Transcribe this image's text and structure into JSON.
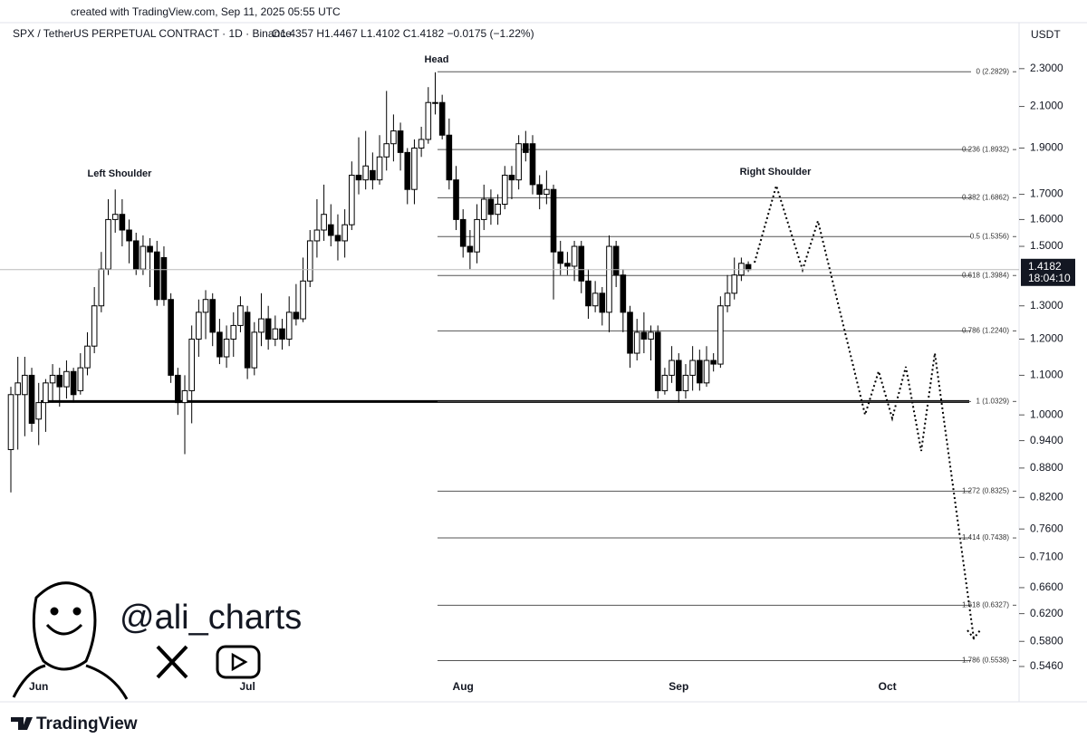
{
  "header": {
    "credit": "created with TradingView.com, Sep 11, 2025 05:55 UTC",
    "symbol": "SPX / TetherUS PERPETUAL CONTRACT · 1D · Binance",
    "ohlc": "O1.4357  H1.4467  L1.4102  C1.4182  −0.0175 (−1.22%)",
    "currency": "USDT"
  },
  "chart_data": {
    "type": "candlestick",
    "log_scale": true,
    "grid": false,
    "up_color": "#ffffff",
    "down_color": "#000000",
    "outline_color": "#000000",
    "categories": [
      null,
      null,
      null,
      null,
      "Jun",
      null,
      null,
      null,
      null,
      null,
      null,
      null,
      null,
      null,
      null,
      null,
      null,
      null,
      null,
      null,
      null,
      null,
      null,
      null,
      null,
      null,
      null,
      null,
      null,
      null,
      null,
      null,
      null,
      null,
      "Jul",
      null,
      null,
      null,
      null,
      null,
      null,
      null,
      null,
      null,
      null,
      null,
      null,
      null,
      null,
      null,
      null,
      null,
      null,
      null,
      null,
      null,
      null,
      null,
      null,
      null,
      null,
      null,
      null,
      null,
      null,
      "Aug",
      null,
      null,
      null,
      null,
      null,
      null,
      null,
      null,
      null,
      null,
      null,
      null,
      null,
      null,
      null,
      null,
      null,
      null,
      null,
      null,
      null,
      null,
      null,
      null,
      null,
      null,
      null,
      null,
      null,
      null,
      "Sep",
      null,
      null,
      null,
      null,
      null,
      null,
      null,
      null,
      null,
      null,
      null,
      null,
      null,
      null,
      null,
      null,
      null,
      null,
      null,
      null,
      null,
      null,
      null,
      null,
      null,
      null,
      null,
      null,
      null,
      "Oct"
    ],
    "open": [
      0.92,
      1.05,
      1.05,
      1.1,
      0.99,
      1.03,
      1.08,
      1.1,
      1.07,
      1.11,
      1.06,
      1.12,
      1.18,
      1.3,
      1.42,
      1.6,
      1.62,
      1.56,
      1.52,
      1.42,
      1.5,
      1.48,
      1.46,
      1.32,
      1.1,
      1.03,
      1.06,
      1.2,
      1.28,
      1.32,
      1.22,
      1.15,
      1.2,
      1.24,
      1.28,
      1.12,
      1.22,
      1.26,
      1.2,
      1.23,
      1.2,
      1.28,
      1.26,
      1.38,
      1.52,
      1.56,
      1.58,
      1.54,
      1.52,
      1.58,
      1.78,
      1.76,
      1.8,
      1.76,
      1.86,
      1.92,
      1.98,
      1.88,
      1.72,
      1.9,
      1.94,
      2.12,
      2.12,
      1.96,
      1.76,
      1.6,
      1.5,
      1.48,
      1.6,
      1.68,
      1.62,
      1.66,
      1.78,
      1.76,
      1.92,
      1.92,
      1.74,
      1.7,
      1.72,
      1.48,
      1.44,
      1.43,
      1.5,
      1.38,
      1.3,
      1.34,
      1.28,
      1.5,
      1.4,
      1.28,
      1.16,
      1.22,
      1.2,
      1.22,
      1.06,
      1.1,
      1.14,
      1.06,
      1.1,
      1.14,
      1.08,
      1.14,
      1.13,
      1.3,
      1.34,
      1.4,
      1.4357,
      null,
      null,
      null,
      null,
      null,
      null,
      null,
      null,
      null,
      null,
      null,
      null,
      null,
      null,
      null,
      null,
      null,
      null,
      null,
      null
    ],
    "high": [
      1.07,
      1.15,
      1.15,
      1.12,
      1.08,
      1.09,
      1.13,
      1.12,
      1.14,
      1.12,
      1.16,
      1.22,
      1.36,
      1.48,
      1.68,
      1.72,
      1.68,
      1.6,
      1.55,
      1.54,
      1.53,
      1.52,
      1.5,
      1.34,
      1.12,
      1.1,
      1.24,
      1.32,
      1.35,
      1.34,
      1.26,
      1.24,
      1.28,
      1.33,
      1.3,
      1.25,
      1.34,
      1.3,
      1.27,
      1.26,
      1.33,
      1.37,
      1.46,
      1.56,
      1.68,
      1.74,
      1.66,
      1.62,
      1.64,
      1.84,
      1.95,
      1.98,
      1.88,
      1.96,
      2.18,
      2.06,
      2.02,
      1.9,
      1.94,
      2.0,
      2.2,
      2.28,
      2.16,
      2.04,
      1.82,
      1.64,
      1.56,
      1.66,
      1.74,
      1.72,
      1.7,
      1.82,
      1.82,
      1.96,
      1.98,
      1.96,
      1.78,
      1.8,
      1.74,
      1.52,
      1.48,
      1.52,
      1.52,
      1.42,
      1.38,
      1.36,
      1.54,
      1.52,
      1.42,
      1.3,
      1.26,
      1.28,
      1.24,
      1.24,
      1.12,
      1.18,
      1.16,
      1.13,
      1.18,
      1.17,
      1.18,
      1.16,
      1.33,
      1.4,
      1.46,
      1.46,
      1.4467,
      null,
      null,
      null,
      null,
      null,
      null,
      null,
      null,
      null,
      null,
      null,
      null,
      null,
      null,
      null,
      null,
      null,
      null,
      null,
      null
    ],
    "low": [
      0.83,
      0.92,
      0.95,
      0.96,
      0.93,
      0.96,
      1.03,
      1.02,
      1.04,
      1.03,
      1.05,
      1.1,
      1.16,
      1.28,
      1.4,
      1.55,
      1.5,
      1.44,
      1.4,
      1.4,
      1.36,
      1.3,
      1.3,
      1.08,
      1.0,
      0.91,
      0.98,
      1.15,
      1.2,
      1.18,
      1.13,
      1.12,
      1.15,
      1.22,
      1.09,
      1.1,
      1.18,
      1.17,
      1.18,
      1.17,
      1.18,
      1.24,
      1.25,
      1.36,
      1.46,
      1.52,
      1.5,
      1.45,
      1.46,
      1.56,
      1.7,
      1.72,
      1.72,
      1.74,
      1.8,
      1.84,
      1.8,
      1.66,
      1.66,
      1.86,
      1.92,
      2.06,
      1.94,
      1.72,
      1.56,
      1.46,
      1.42,
      1.44,
      1.56,
      1.58,
      1.58,
      1.64,
      1.68,
      1.72,
      1.84,
      1.7,
      1.64,
      1.66,
      1.32,
      1.4,
      1.4,
      1.38,
      1.34,
      1.26,
      1.28,
      1.24,
      1.22,
      1.36,
      1.22,
      1.12,
      1.14,
      1.16,
      1.14,
      1.04,
      1.05,
      1.08,
      1.03,
      1.04,
      1.06,
      1.06,
      1.07,
      1.11,
      1.12,
      1.28,
      1.32,
      1.38,
      1.4102,
      null,
      null,
      null,
      null,
      null,
      null,
      null,
      null,
      null,
      null,
      null,
      null,
      null,
      null,
      null,
      null,
      null,
      null,
      null,
      null
    ],
    "close": [
      1.05,
      1.08,
      1.1,
      0.98,
      1.03,
      1.08,
      1.1,
      1.07,
      1.11,
      1.05,
      1.12,
      1.18,
      1.3,
      1.42,
      1.6,
      1.62,
      1.56,
      1.52,
      1.42,
      1.5,
      1.48,
      1.32,
      1.32,
      1.1,
      1.03,
      1.06,
      1.2,
      1.28,
      1.32,
      1.22,
      1.15,
      1.2,
      1.24,
      1.3,
      1.12,
      1.22,
      1.26,
      1.2,
      1.23,
      1.2,
      1.28,
      1.26,
      1.38,
      1.52,
      1.56,
      1.62,
      1.54,
      1.52,
      1.58,
      1.78,
      1.76,
      1.82,
      1.76,
      1.86,
      1.92,
      1.98,
      1.88,
      1.72,
      1.9,
      1.94,
      2.12,
      2.12,
      1.96,
      1.76,
      1.6,
      1.5,
      1.48,
      1.6,
      1.68,
      1.62,
      1.66,
      1.78,
      1.76,
      1.92,
      1.88,
      1.74,
      1.7,
      1.72,
      1.48,
      1.44,
      1.43,
      1.5,
      1.38,
      1.3,
      1.34,
      1.28,
      1.5,
      1.4,
      1.28,
      1.16,
      1.22,
      1.2,
      1.22,
      1.06,
      1.1,
      1.14,
      1.06,
      1.1,
      1.14,
      1.08,
      1.14,
      1.13,
      1.3,
      1.34,
      1.4,
      1.44,
      1.4182,
      null,
      null,
      null,
      null,
      null,
      null,
      null,
      null,
      null,
      null,
      null,
      null,
      null,
      null,
      null,
      null,
      null,
      null,
      null,
      null
    ],
    "ylim": [
      0.507,
      2.433
    ],
    "yticks": [
      {
        "value": 2.3,
        "label": "2.3000"
      },
      {
        "value": 2.1,
        "label": "2.1000"
      },
      {
        "value": 1.9,
        "label": "1.9000"
      },
      {
        "value": 1.7,
        "label": "1.7000"
      },
      {
        "value": 1.6,
        "label": "1.6000"
      },
      {
        "value": 1.5,
        "label": "1.5000"
      },
      {
        "value": 1.3,
        "label": "1.3000"
      },
      {
        "value": 1.2,
        "label": "1.2000"
      },
      {
        "value": 1.1,
        "label": "1.1000"
      },
      {
        "value": 1.0,
        "label": "1.0000"
      },
      {
        "value": 0.94,
        "label": "0.9400"
      },
      {
        "value": 0.88,
        "label": "0.8800"
      },
      {
        "value": 0.82,
        "label": "0.8200"
      },
      {
        "value": 0.76,
        "label": "0.7600"
      },
      {
        "value": 0.71,
        "label": "0.7100"
      },
      {
        "value": 0.66,
        "label": "0.6600"
      },
      {
        "value": 0.62,
        "label": "0.6200"
      },
      {
        "value": 0.58,
        "label": "0.5800"
      },
      {
        "value": 0.546,
        "label": "0.5460"
      }
    ],
    "fib_levels": [
      {
        "value": 2.2829,
        "label": "0 (2.2829)"
      },
      {
        "value": 1.8932,
        "label": "0.236 (1.8932)"
      },
      {
        "value": 1.6862,
        "label": "0.382 (1.6862)"
      },
      {
        "value": 1.5356,
        "label": "0.5 (1.5356)"
      },
      {
        "value": 1.3984,
        "label": "0.618 (1.3984)"
      },
      {
        "value": 1.224,
        "label": "0.786 (1.2240)"
      },
      {
        "value": 1.0329,
        "label": "1 (1.0329)"
      },
      {
        "value": 0.8325,
        "label": "1.272 (0.8325)"
      },
      {
        "value": 0.7438,
        "label": "1.414 (0.7438)"
      },
      {
        "value": 0.6327,
        "label": "1.618 (0.6327)"
      },
      {
        "value": 0.5538,
        "label": "1.786 (0.5538)"
      }
    ],
    "support": 1.0329,
    "countdown": "18:04:10",
    "annotations": [
      "Head",
      "Left Shoulder",
      "Right Shoulder"
    ]
  },
  "footer": {
    "handle": "@ali_charts",
    "brand": "TradingView"
  }
}
